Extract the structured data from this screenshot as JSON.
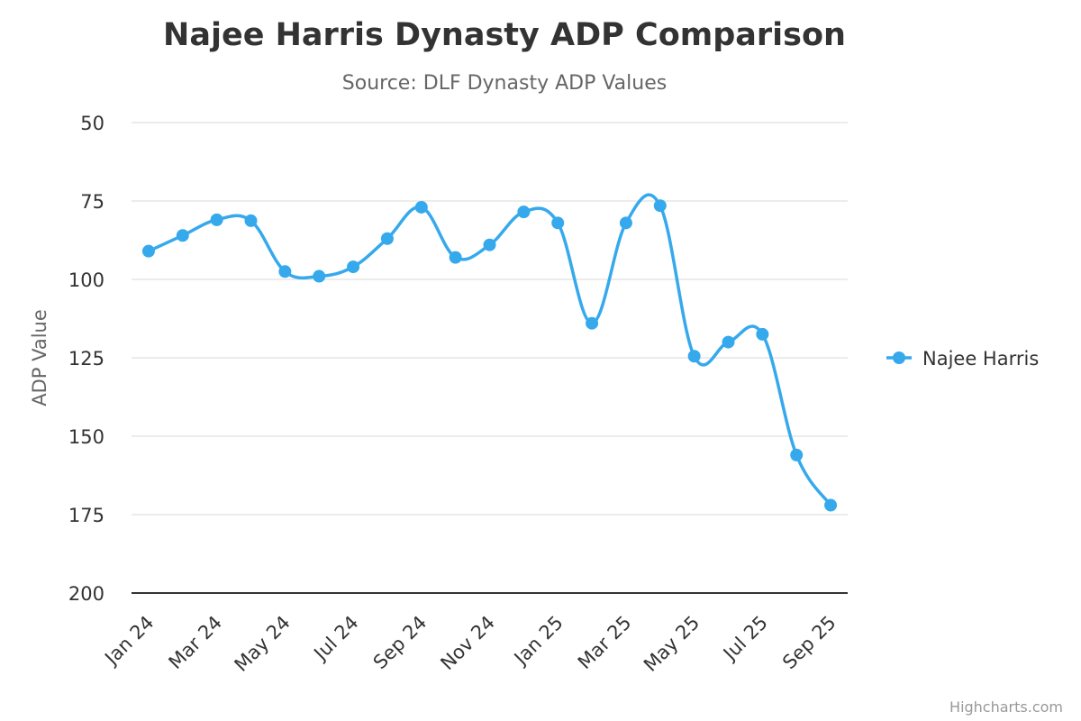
{
  "chart_data": {
    "type": "line",
    "title": "Najee Harris Dynasty ADP Comparison",
    "subtitle": "Source: DLF Dynasty ADP Values",
    "ylabel": "ADP Value",
    "xlabel": "",
    "y_reversed": true,
    "ylim": [
      50,
      200
    ],
    "yticks": [
      50,
      75,
      100,
      125,
      150,
      175,
      200
    ],
    "grid": true,
    "legend_position": "right",
    "x": [
      "Jan 24",
      "Feb 24",
      "Mar 24",
      "Apr 24",
      "May 24",
      "Jun 24",
      "Jul 24",
      "Aug 24",
      "Sep 24",
      "Oct 24",
      "Nov 24",
      "Dec 24",
      "Jan 25",
      "Feb 25",
      "Mar 25",
      "Apr 25",
      "May 25",
      "Jun 25",
      "Jul 25",
      "Aug 25",
      "Sep 25"
    ],
    "xticks": [
      "Jan 24",
      "Mar 24",
      "May 24",
      "Jul 24",
      "Sep 24",
      "Nov 24",
      "Jan 25",
      "Mar 25",
      "May 25",
      "Jul 25",
      "Sep 25"
    ],
    "series": [
      {
        "name": "Najee Harris",
        "color": "#36a9ec",
        "values": [
          91,
          86,
          81,
          81.3,
          97.5,
          99,
          96,
          87,
          77,
          93,
          89,
          78.5,
          82,
          114,
          82,
          76.5,
          124.5,
          120,
          117.5,
          156,
          172
        ]
      }
    ]
  },
  "credits": "Highcharts.com"
}
